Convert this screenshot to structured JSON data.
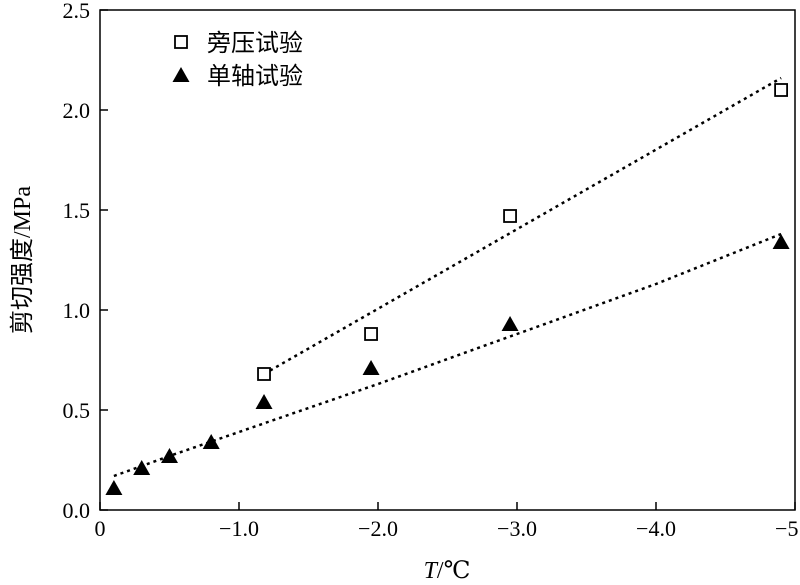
{
  "chart_data": {
    "type": "scatter",
    "xlabel_var": "T",
    "xlabel_unit": "/℃",
    "ylabel": "剪切强度/MPa",
    "xlim": [
      0,
      -5
    ],
    "ylim": [
      0,
      2.5
    ],
    "x_ticks": [
      0,
      -1,
      -2,
      -3,
      -4,
      -5
    ],
    "x_tick_labels": [
      "0",
      "−1.0",
      "−2.0",
      "−3.0",
      "−4.0",
      "−5.0"
    ],
    "y_ticks": [
      0,
      0.5,
      1,
      1.5,
      2,
      2.5
    ],
    "y_tick_labels": [
      "0.0",
      "0.5",
      "1.0",
      "1.5",
      "2.0",
      "2.5"
    ],
    "grid": false,
    "legend_position": "top-left",
    "series": [
      {
        "name": "旁压试验",
        "marker": "open-square",
        "color": "#000000",
        "points": [
          {
            "x": -1.18,
            "y": 0.68
          },
          {
            "x": -1.95,
            "y": 0.88
          },
          {
            "x": -2.95,
            "y": 1.47
          },
          {
            "x": -4.9,
            "y": 2.1
          }
        ],
        "fit": [
          {
            "x": -1.18,
            "y": 0.68
          },
          {
            "x": -4.9,
            "y": 2.16
          }
        ]
      },
      {
        "name": "单轴试验",
        "marker": "filled-triangle",
        "color": "#000000",
        "points": [
          {
            "x": -0.1,
            "y": 0.11
          },
          {
            "x": -0.3,
            "y": 0.21
          },
          {
            "x": -0.5,
            "y": 0.27
          },
          {
            "x": -0.8,
            "y": 0.34
          },
          {
            "x": -1.18,
            "y": 0.54
          },
          {
            "x": -1.95,
            "y": 0.71
          },
          {
            "x": -2.95,
            "y": 0.93
          },
          {
            "x": -4.9,
            "y": 1.34
          }
        ],
        "fit": [
          {
            "x": -0.1,
            "y": 0.17
          },
          {
            "x": -0.5,
            "y": 0.27
          },
          {
            "x": -1.0,
            "y": 0.39
          },
          {
            "x": -2.0,
            "y": 0.63
          },
          {
            "x": -3.0,
            "y": 0.88
          },
          {
            "x": -4.0,
            "y": 1.13
          },
          {
            "x": -4.9,
            "y": 1.38
          }
        ]
      }
    ]
  }
}
